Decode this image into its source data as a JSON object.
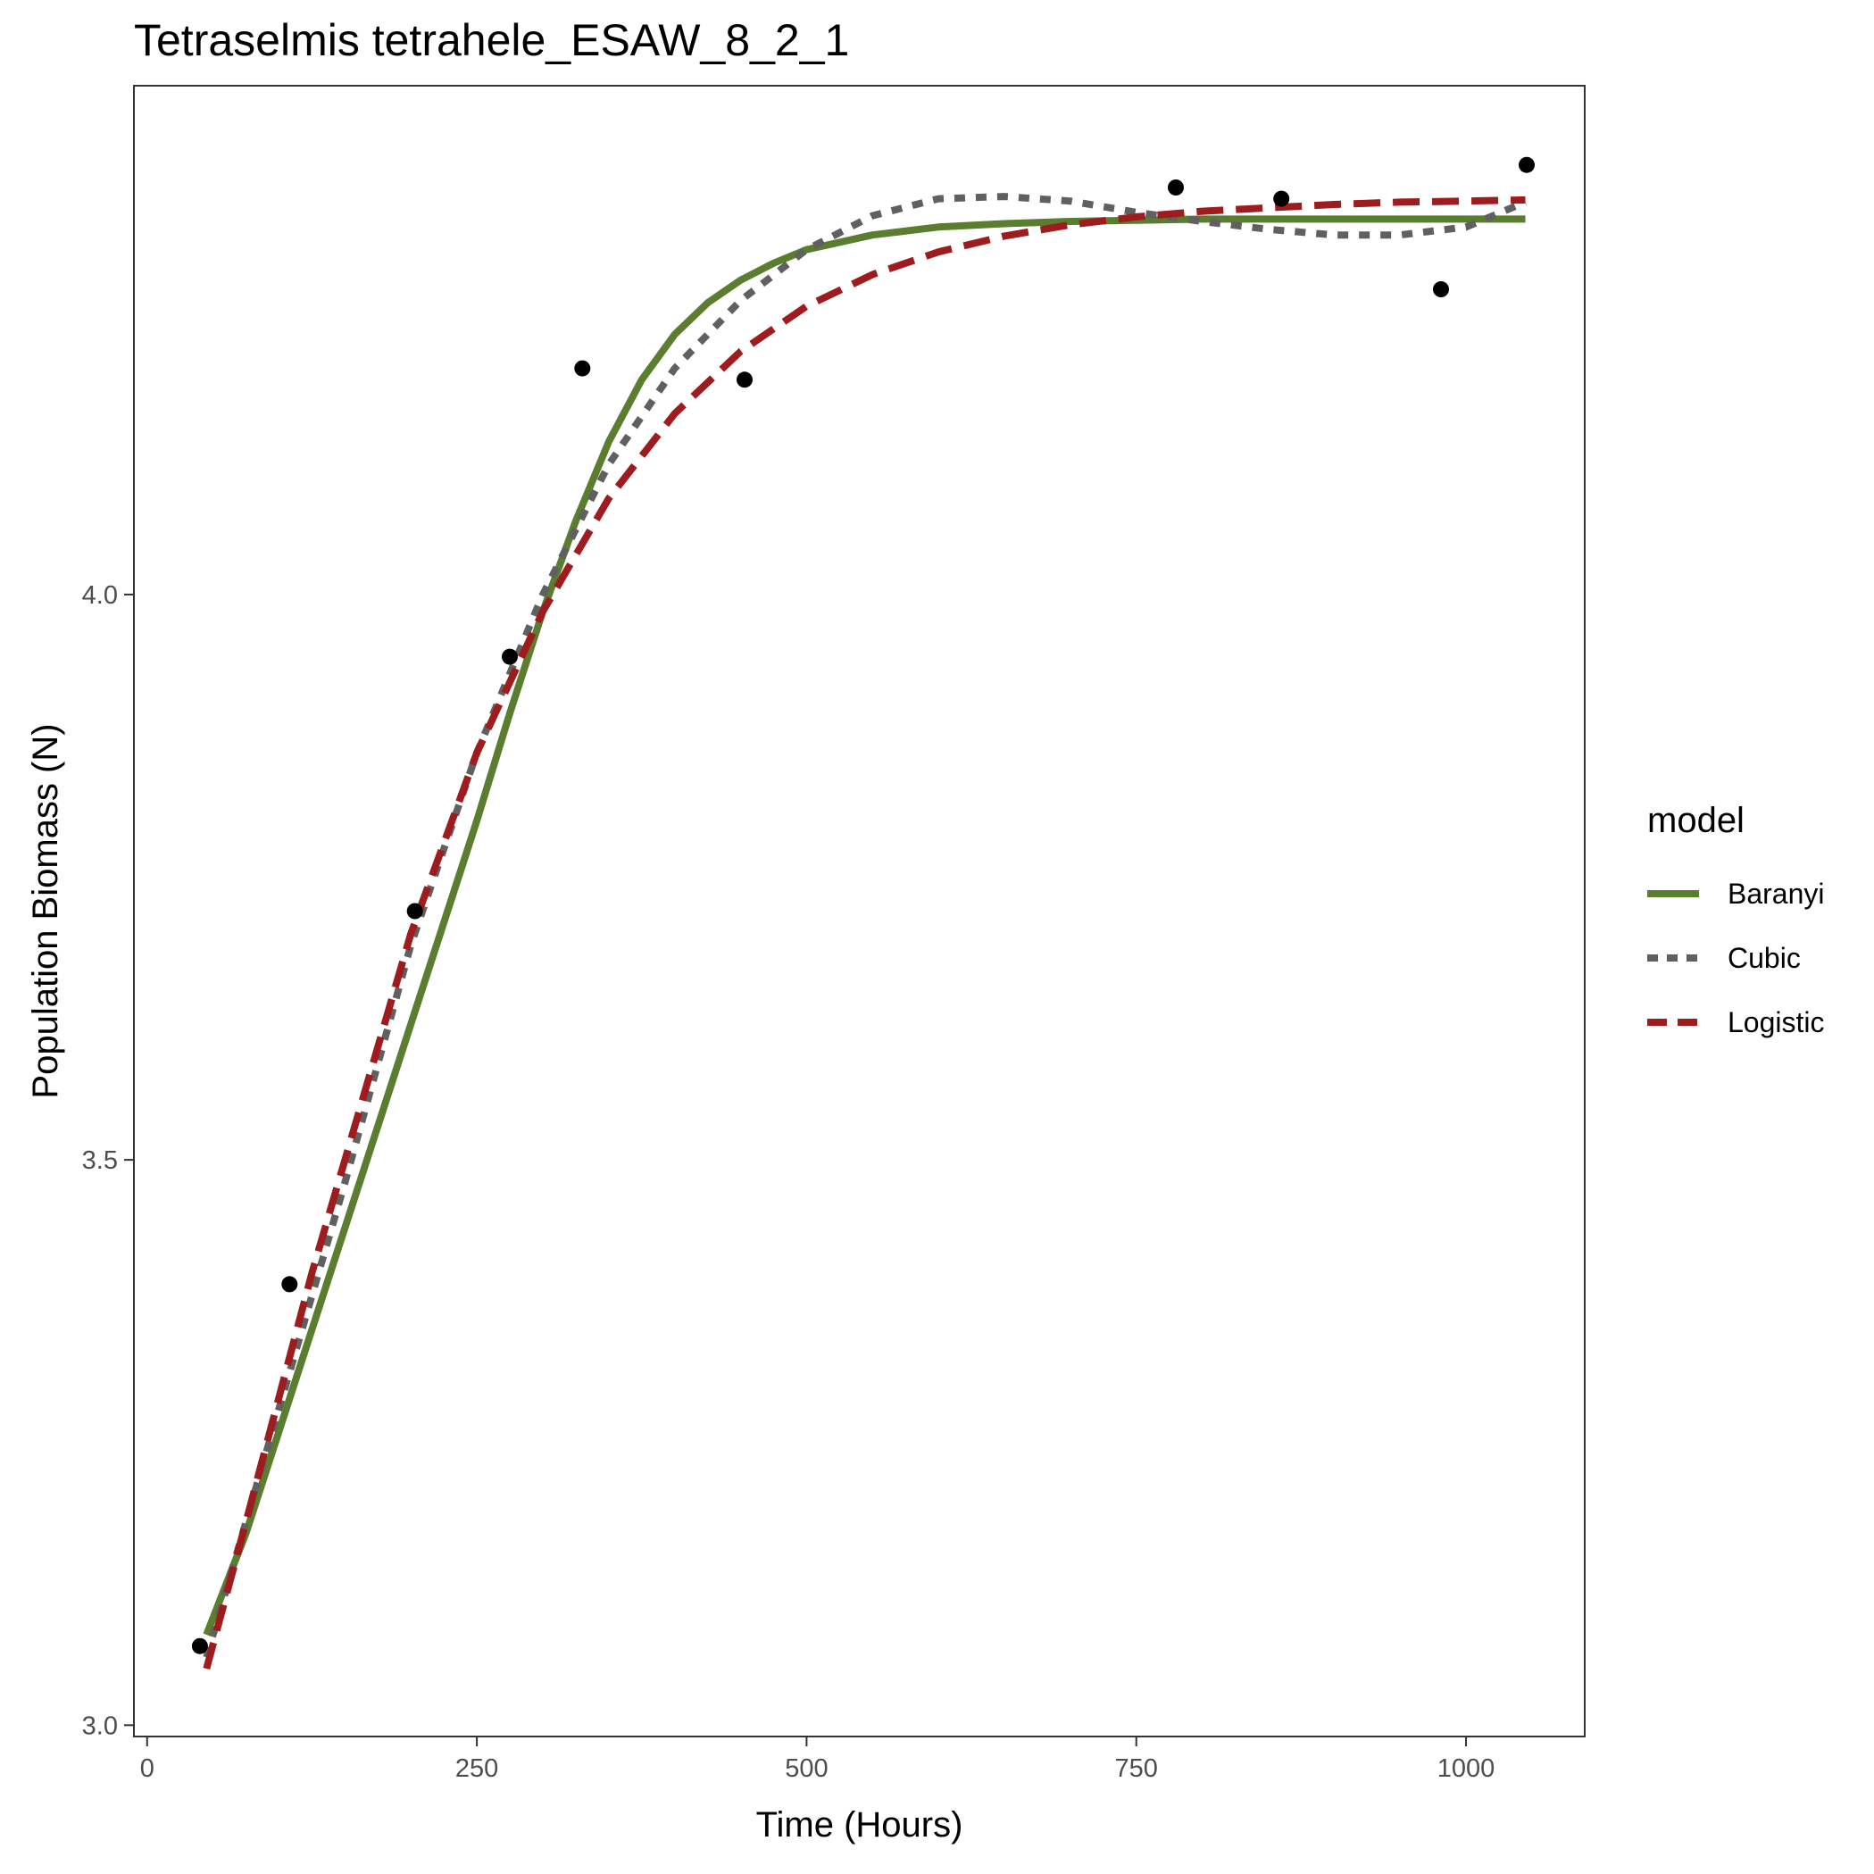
{
  "chart_data": {
    "type": "line",
    "title": "Tetraselmis tetrahele_ESAW_8_2_1",
    "xlabel": "Time (Hours)",
    "ylabel": "Population Biomass (N)",
    "xlim": [
      -10,
      1090
    ],
    "ylim": [
      2.99,
      4.45
    ],
    "xticks": [
      0,
      250,
      500,
      750,
      1000
    ],
    "xtick_labels": [
      "0",
      "250",
      "500",
      "750",
      "1000"
    ],
    "yticks": [
      3.0,
      3.5,
      4.0
    ],
    "ytick_labels": [
      "3.0",
      "3.5",
      "4.0"
    ],
    "grid": false,
    "legend": {
      "title": "model",
      "position": "right"
    },
    "points": {
      "x": [
        40,
        108,
        203,
        275,
        330,
        453,
        780,
        860,
        981,
        1046
      ],
      "y": [
        3.07,
        3.39,
        3.72,
        3.945,
        4.2,
        4.19,
        4.36,
        4.35,
        4.27,
        4.38
      ]
    },
    "series": [
      {
        "name": "Baranyi",
        "color": "#5a7d2f",
        "dash": "solid",
        "x": [
          45,
          75,
          100,
          125,
          150,
          175,
          200,
          225,
          250,
          275,
          300,
          325,
          350,
          375,
          400,
          425,
          450,
          475,
          500,
          550,
          600,
          650,
          700,
          750,
          800,
          850,
          900,
          950,
          1000,
          1045
        ],
        "y": [
          3.08,
          3.17,
          3.26,
          3.35,
          3.44,
          3.53,
          3.62,
          3.71,
          3.8,
          3.895,
          3.985,
          4.065,
          4.135,
          4.19,
          4.23,
          4.258,
          4.278,
          4.293,
          4.305,
          4.318,
          4.325,
          4.328,
          4.33,
          4.331,
          4.332,
          4.332,
          4.332,
          4.332,
          4.332,
          4.332
        ]
      },
      {
        "name": "Cubic",
        "color": "#606060",
        "dash": "dotted",
        "x": [
          45,
          75,
          100,
          125,
          150,
          200,
          250,
          300,
          350,
          400,
          450,
          500,
          550,
          600,
          650,
          700,
          750,
          800,
          850,
          900,
          950,
          1000,
          1045
        ],
        "y": [
          3.06,
          3.18,
          3.28,
          3.38,
          3.48,
          3.69,
          3.86,
          4.0,
          4.115,
          4.2,
          4.26,
          4.305,
          4.335,
          4.35,
          4.352,
          4.348,
          4.338,
          4.33,
          4.323,
          4.318,
          4.318,
          4.325,
          4.347
        ]
      },
      {
        "name": "Logistic",
        "color": "#9e1b1e",
        "dash": "dashed",
        "x": [
          45,
          75,
          100,
          125,
          150,
          200,
          250,
          300,
          350,
          400,
          450,
          500,
          550,
          600,
          650,
          700,
          750,
          800,
          850,
          900,
          950,
          1000,
          1045
        ],
        "y": [
          3.05,
          3.18,
          3.29,
          3.4,
          3.5,
          3.7,
          3.86,
          3.985,
          4.085,
          4.16,
          4.215,
          4.255,
          4.283,
          4.303,
          4.317,
          4.327,
          4.334,
          4.339,
          4.342,
          4.345,
          4.347,
          4.348,
          4.349
        ]
      }
    ]
  }
}
